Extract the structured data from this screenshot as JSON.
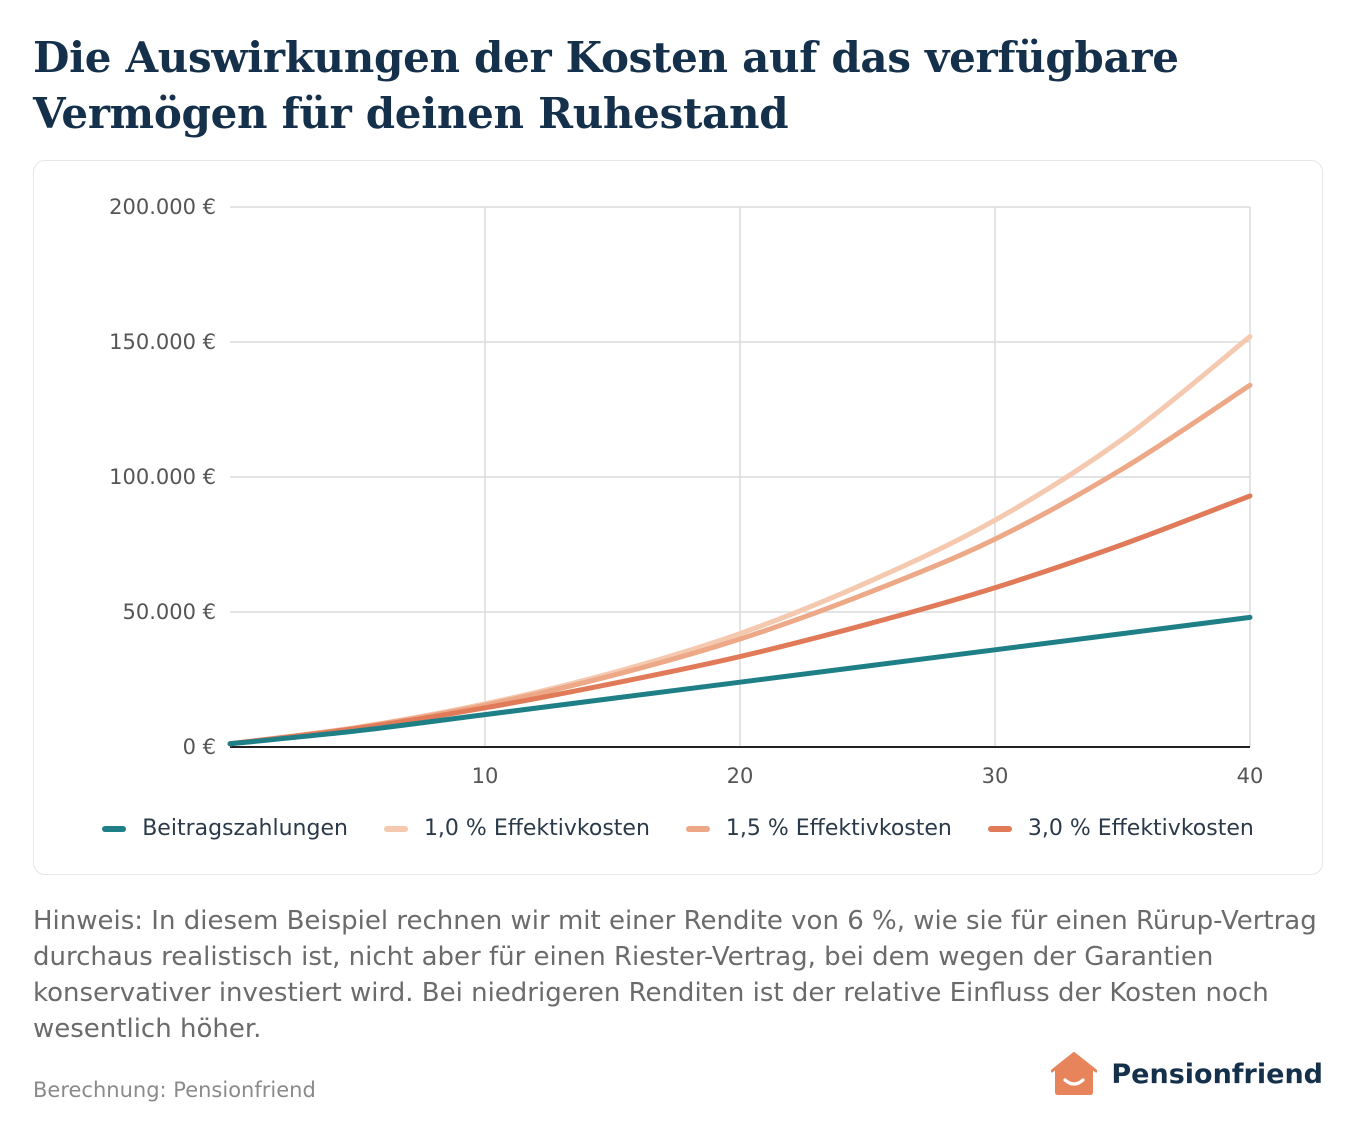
{
  "header": {
    "title": "Die Auswirkungen der Kosten auf das verfügbare Vermögen für deinen Ruhestand"
  },
  "chart_data": {
    "type": "line",
    "title": "Die Auswirkungen der Kosten auf das verfügbare Vermögen für deinen Ruhestand",
    "xlabel": "",
    "ylabel": "",
    "x": [
      0,
      5,
      10,
      15,
      20,
      25,
      30,
      35,
      40
    ],
    "xlim": [
      0,
      40
    ],
    "ylim": [
      0,
      200000
    ],
    "xticks": [
      10,
      20,
      30,
      40
    ],
    "xtick_labels": [
      "10",
      "20",
      "30",
      "40"
    ],
    "yticks": [
      0,
      50000,
      100000,
      150000,
      200000
    ],
    "ytick_labels": [
      "0 €",
      "50.000 €",
      "100.000 €",
      "150.000 €",
      "200.000 €"
    ],
    "grid": true,
    "legend_position": "bottom",
    "series": [
      {
        "name": "Beitragszahlungen",
        "color": "#1e7f86",
        "values": [
          1200,
          6000,
          12000,
          18000,
          24000,
          30000,
          36000,
          42000,
          48000
        ]
      },
      {
        "name": "1,0 % Effektivkosten",
        "color": "#f5c9b0",
        "values": [
          1200,
          7300,
          16000,
          27500,
          42000,
          61000,
          84000,
          114000,
          152000
        ]
      },
      {
        "name": "1,5 % Effektivkosten",
        "color": "#eda887",
        "values": [
          1200,
          7200,
          15500,
          26500,
          40000,
          57000,
          77000,
          103000,
          134000
        ]
      },
      {
        "name": "3,0 % Effektivkosten",
        "color": "#e07a59",
        "values": [
          1200,
          6900,
          14500,
          23500,
          33500,
          45500,
          59000,
          75000,
          93000
        ]
      }
    ]
  },
  "note": {
    "text": "Hinweis: In diesem Beispiel rechnen wir mit einer Rendite von 6 %, wie sie für einen Rürup-Vertrag durchaus realistisch ist, nicht aber für einen Riester-Vertrag, bei dem wegen der Garantien konservativer investiert wird. Bei niedrigeren Renditen ist der relative Einfluss der Kosten noch wesentlich höher."
  },
  "footer": {
    "source": "Berechnung: Pensionfriend",
    "brand": "Pensionfriend",
    "brand_icon": "house-smile-icon",
    "brand_color": "#e8845c"
  }
}
